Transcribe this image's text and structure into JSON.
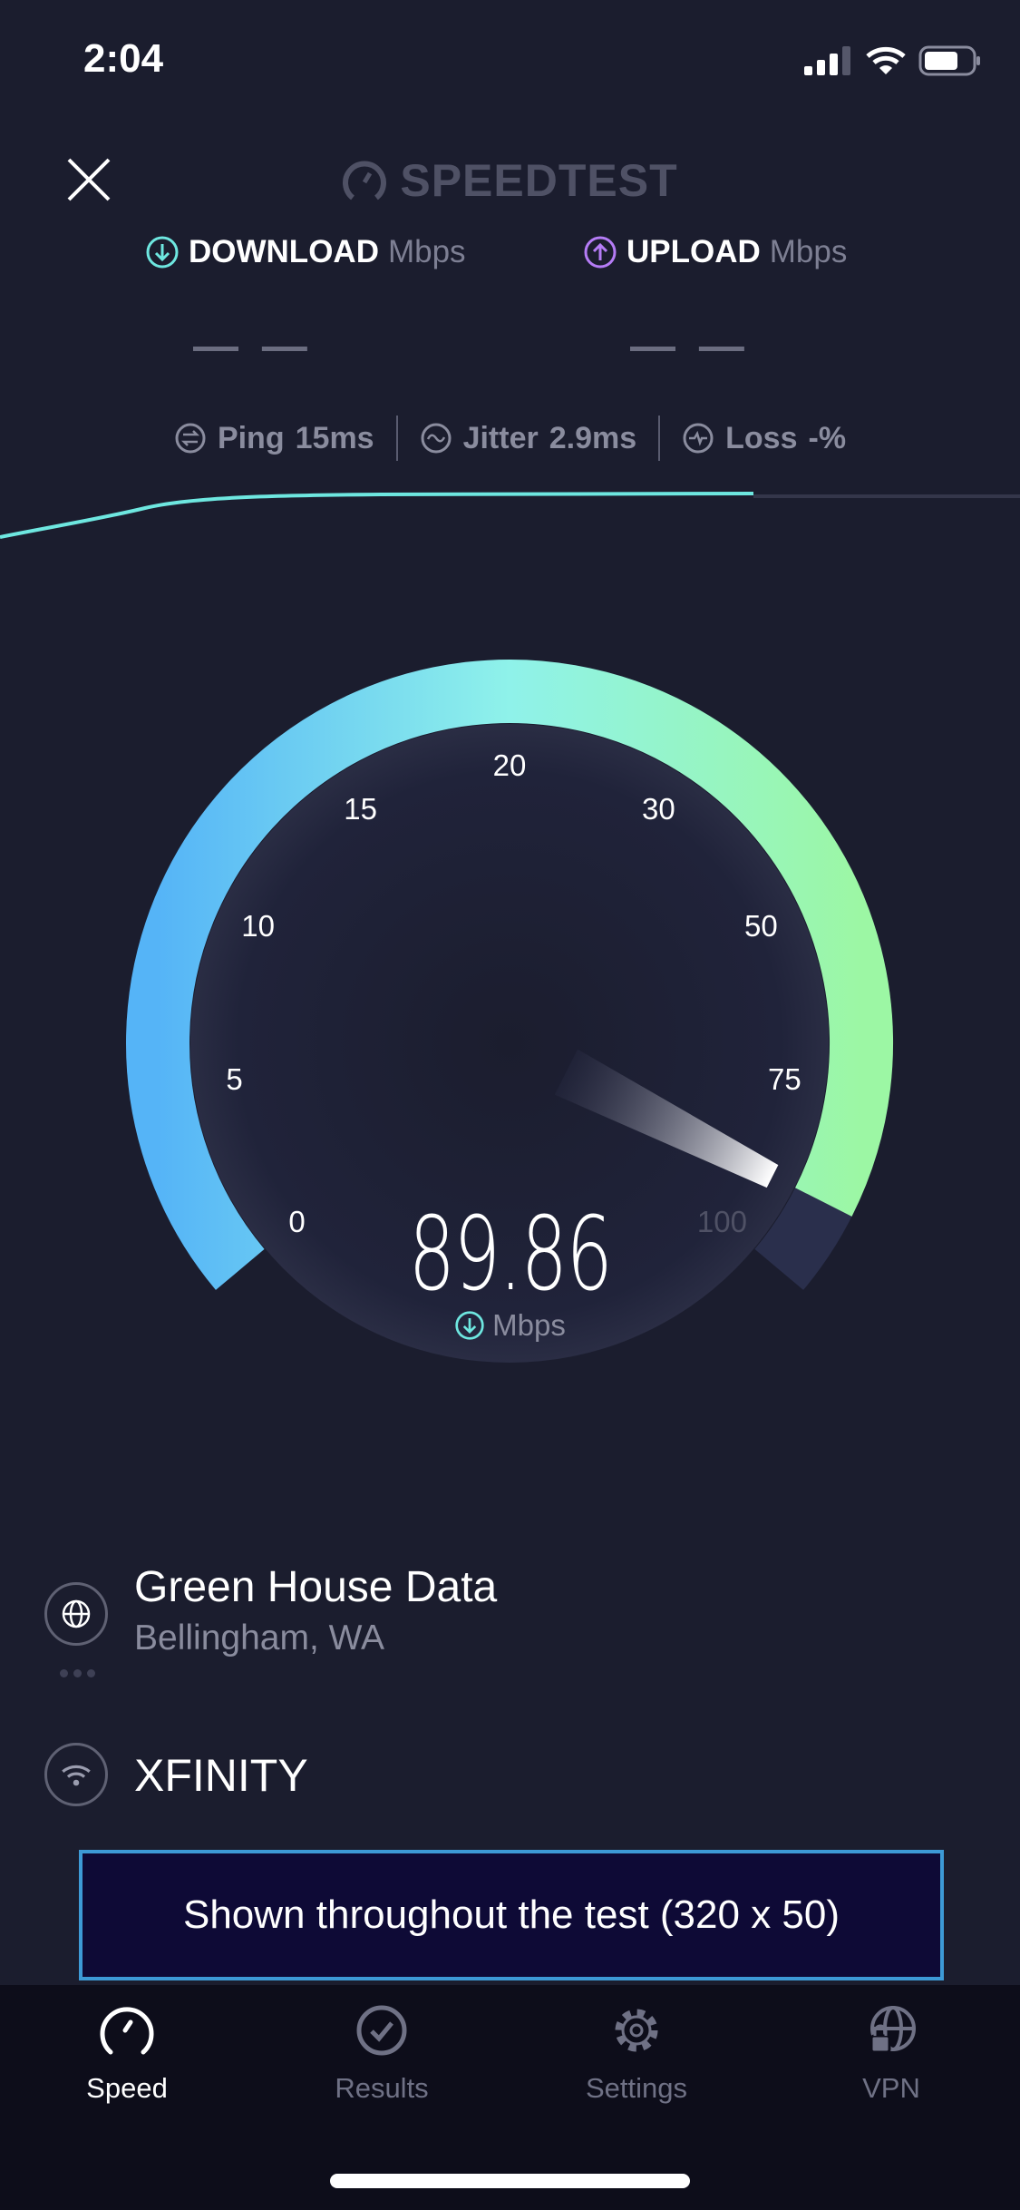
{
  "status_bar": {
    "time": "2:04",
    "icons": [
      "signal-icon",
      "wifi-icon",
      "battery-icon"
    ]
  },
  "header": {
    "logo_text": "SPEEDTEST",
    "close_icon": "close-icon"
  },
  "results": {
    "download": {
      "label": "DOWNLOAD",
      "unit": "Mbps",
      "value": "— —",
      "color": "#6ee7e0"
    },
    "upload": {
      "label": "UPLOAD",
      "unit": "Mbps",
      "value": "— —",
      "color": "#b57cf6"
    }
  },
  "metrics": {
    "ping": {
      "label": "Ping",
      "value": "15",
      "unit": "ms"
    },
    "jitter": {
      "label": "Jitter",
      "value": "2.9",
      "unit": "ms"
    },
    "loss": {
      "label": "Loss",
      "value": "-",
      "unit": "%"
    }
  },
  "gauge": {
    "ticks": [
      "0",
      "5",
      "10",
      "15",
      "20",
      "30",
      "50",
      "75",
      "100"
    ],
    "value": 89.86,
    "value_text": "89.86",
    "unit": "Mbps",
    "colors": {
      "start": "#55b4f7",
      "mid": "#8ff2ea",
      "end": "#9cf7a4"
    }
  },
  "server": {
    "name": "Green House Data",
    "location": "Bellingham, WA"
  },
  "provider": {
    "name": "XFINITY"
  },
  "ad": {
    "text": "Shown throughout the test (320 x 50)"
  },
  "tabs": [
    {
      "label": "Speed",
      "icon": "speedometer-icon",
      "active": true
    },
    {
      "label": "Results",
      "icon": "check-circle-icon",
      "active": false
    },
    {
      "label": "Settings",
      "icon": "gear-icon",
      "active": false
    },
    {
      "label": "VPN",
      "icon": "globe-lock-icon",
      "active": false
    }
  ]
}
